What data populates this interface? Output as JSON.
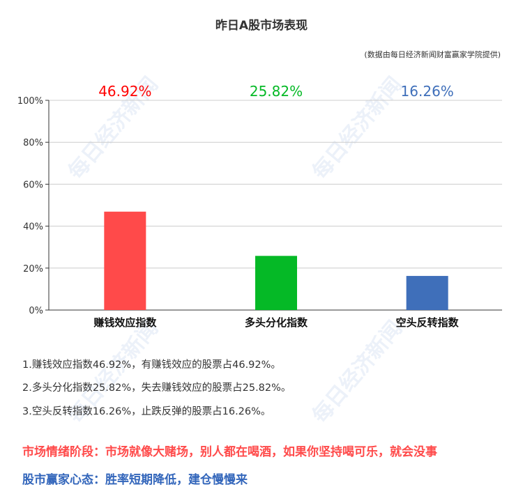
{
  "title": "昨日A股市场表现",
  "source": "(数据由每日经济新闻财富赢家学院提供)",
  "watermark": "每日经济新闻",
  "chart_data": {
    "type": "bar",
    "categories": [
      "赚钱效应指数",
      "多头分化指数",
      "空头反转指数"
    ],
    "values": [
      46.92,
      25.82,
      16.26
    ],
    "value_labels": [
      "46.92%",
      "25.82%",
      "16.26%"
    ],
    "colors": [
      "#ff4a4a",
      "#05b926",
      "#3f6fba"
    ],
    "label_colors": [
      "#ff0000",
      "#05b926",
      "#3f6fba"
    ],
    "ylim": [
      0,
      100
    ],
    "yticks": [
      "0%",
      "20%",
      "40%",
      "60%",
      "80%",
      "100%"
    ],
    "grid": true
  },
  "notes": [
    "1.赚钱效应指数46.92%，有赚钱效应的股票占46.92%。",
    "2.多头分化指数25.82%，失去赚钱效应的股票占25.82%。",
    "3.空头反转指数16.26%，止跌反弹的股票占16.26%。"
  ],
  "stage": "市场情绪阶段：市场就像大赌场，别人都在喝酒，如果你坚持喝可乐，就会没事",
  "mindset": "股市赢家心态：胜率短期降低，建仓慢慢来"
}
